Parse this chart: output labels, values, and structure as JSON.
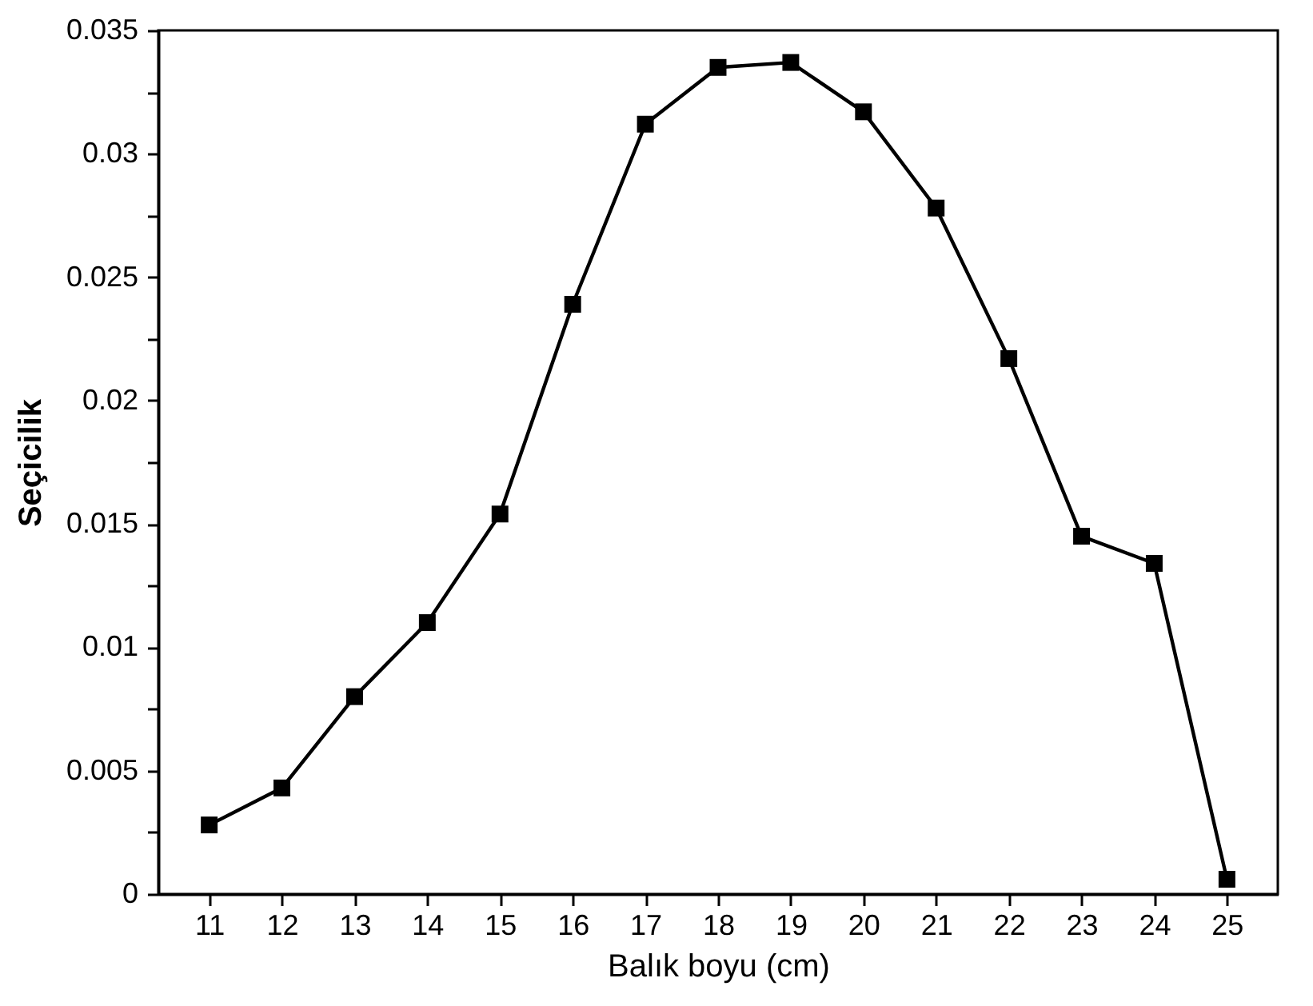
{
  "chart_data": {
    "type": "line",
    "xlabel": "Balık boyu (cm)",
    "ylabel": "Seçicilik",
    "categories": [
      "11",
      "12",
      "13",
      "14",
      "15",
      "16",
      "17",
      "18",
      "19",
      "20",
      "21",
      "22",
      "23",
      "24",
      "25"
    ],
    "series": [
      {
        "color": "#000000",
        "values": [
          0.0028,
          0.0043,
          0.008,
          0.011,
          0.0154,
          0.0239,
          0.0312,
          0.0335,
          0.0337,
          0.0317,
          0.0278,
          0.0217,
          0.0145,
          0.0134,
          0.0006
        ]
      }
    ],
    "ylim": [
      0,
      0.035
    ],
    "yticks": [
      0,
      {
        "value": 0.0025,
        "label": null
      },
      0.005,
      {
        "value": 0.0075,
        "label": null
      },
      0.01,
      {
        "value": 0.0125,
        "label": null
      },
      0.015,
      {
        "value": 0.0175,
        "label": null
      },
      0.02,
      {
        "value": 0.0225,
        "label": null
      },
      0.025,
      {
        "value": 0.0275,
        "label": null
      },
      0.03,
      {
        "value": 0.0325,
        "label": null
      },
      0.035
    ],
    "marker": "square",
    "line_style": "solid"
  }
}
